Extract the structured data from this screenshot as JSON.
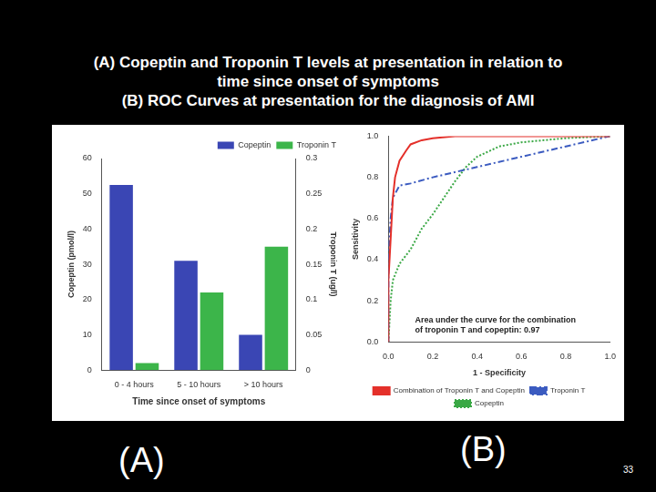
{
  "slide": {
    "title": [
      "(A) Copeptin and Troponin T levels at presentation in relation to",
      "time since onset of symptoms",
      "(B) ROC Curves at presentation for the diagnosis of AMI"
    ],
    "panel_labels": [
      "(A)",
      "(B)"
    ],
    "page_number": "33"
  },
  "chart_data": [
    {
      "type": "bar",
      "categories": [
        "0 - 4 hours",
        "5 - 10 hours",
        "> 10 hours"
      ],
      "x_label": "Time since onset of symptoms",
      "y_label": "Copeptin (pmol/l)",
      "y2_label": "Troponin T (ug/l)",
      "series": [
        {
          "name": "Copeptin",
          "color": "#3a46b4",
          "values": [
            52.5,
            31,
            10
          ]
        },
        {
          "name": "Troponin T",
          "color": "#3cb54a",
          "axis": "y2",
          "values": [
            0.01,
            0.11,
            0.175
          ]
        }
      ],
      "ylim": [
        0,
        60
      ],
      "yticks": [
        0,
        10,
        20,
        30,
        40,
        50,
        60
      ],
      "y2lim": [
        0,
        0.3
      ],
      "y2ticks": [
        0,
        0.05,
        0.1,
        0.15,
        0.2,
        0.25,
        0.3
      ],
      "grid": false,
      "legend": "top-right"
    },
    {
      "type": "line",
      "x_label": "1 - Specificity",
      "y_label": "Sensitivity",
      "annotation": [
        "Area under the curve for the combination",
        "of troponin T and copeptin: 0.97"
      ],
      "series": [
        {
          "name": "Combination of Troponin T and Copeptin",
          "color": "#e4302a",
          "line_style": "solid",
          "x": [
            0,
            0,
            0.01,
            0.02,
            0.03,
            0.05,
            0.08,
            0.1,
            0.15,
            0.2,
            0.3,
            1
          ],
          "values": [
            0,
            0.3,
            0.5,
            0.7,
            0.8,
            0.88,
            0.93,
            0.96,
            0.98,
            0.99,
            1,
            1
          ]
        },
        {
          "name": "Troponin T",
          "color": "#3b5bc0",
          "line_style": "dashdot",
          "x": [
            0,
            0,
            0.01,
            0.02,
            0.05,
            0.1,
            0.2,
            0.4,
            0.6,
            0.8,
            1
          ],
          "values": [
            0,
            0.4,
            0.6,
            0.7,
            0.76,
            0.77,
            0.8,
            0.85,
            0.9,
            0.95,
            1
          ]
        },
        {
          "name": "Copeptin",
          "color": "#3aa845",
          "line_style": "dotted",
          "x": [
            0,
            0.005,
            0.01,
            0.02,
            0.05,
            0.1,
            0.15,
            0.2,
            0.25,
            0.3,
            0.35,
            0.4,
            0.5,
            0.6,
            0.8,
            1
          ],
          "values": [
            0,
            0.1,
            0.2,
            0.3,
            0.38,
            0.45,
            0.55,
            0.62,
            0.7,
            0.78,
            0.85,
            0.9,
            0.95,
            0.97,
            0.99,
            1
          ]
        }
      ],
      "xlim": [
        0,
        1
      ],
      "xticks": [
        {
          "value": 0,
          "label": "0.0"
        },
        {
          "value": 0.2,
          "label": "0.2"
        },
        {
          "value": 0.4,
          "label": "0.4"
        },
        {
          "value": 0.6,
          "label": "0.6"
        },
        {
          "value": 0.8,
          "label": "0.8"
        },
        {
          "value": 1,
          "label": "1.0"
        }
      ],
      "ylim": [
        0,
        1
      ],
      "yticks": [
        {
          "value": 0,
          "label": "0.0"
        },
        {
          "value": 0.2,
          "label": "0.2"
        },
        {
          "value": 0.4,
          "label": "0.4"
        },
        {
          "value": 0.6,
          "label": "0.6"
        },
        {
          "value": 0.8,
          "label": "0.8"
        },
        {
          "value": 1,
          "label": "1.0"
        }
      ],
      "grid": false,
      "legend": "bottom"
    }
  ]
}
